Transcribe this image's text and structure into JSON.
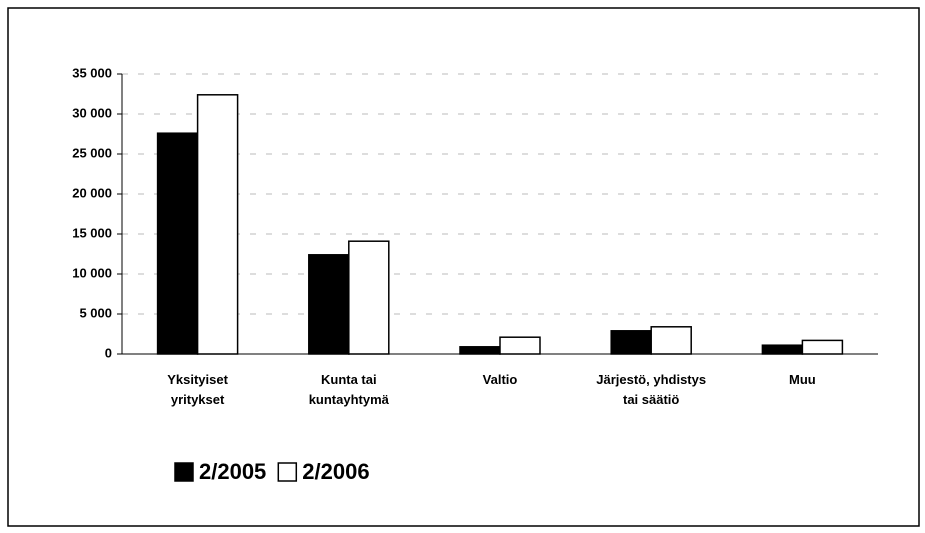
{
  "chart_data": {
    "type": "bar",
    "categories": [
      "Yksityiset yritykset",
      "Kunta tai kuntayhtymä",
      "Valtio",
      "Järjestö, yhdistys tai säätiö",
      "Muu"
    ],
    "series": [
      {
        "name": "2/2005",
        "color": "#000000",
        "values": [
          27600,
          12400,
          900,
          2900,
          1100
        ]
      },
      {
        "name": "2/2006",
        "color": "#ffffff",
        "values": [
          32400,
          14100,
          2100,
          3400,
          1700
        ]
      }
    ],
    "ylim": [
      0,
      35000
    ],
    "yticks": [
      0,
      {
        "value": 5000,
        "label": "5 000"
      },
      {
        "value": 10000,
        "label": "10 000"
      },
      {
        "value": 15000,
        "label": "15 000"
      },
      {
        "value": 20000,
        "label": "20 000"
      },
      {
        "value": 25000,
        "label": "25 000"
      },
      {
        "value": 30000,
        "label": "30 000"
      },
      {
        "value": 35000,
        "label": "35 000"
      }
    ],
    "grid": true
  }
}
